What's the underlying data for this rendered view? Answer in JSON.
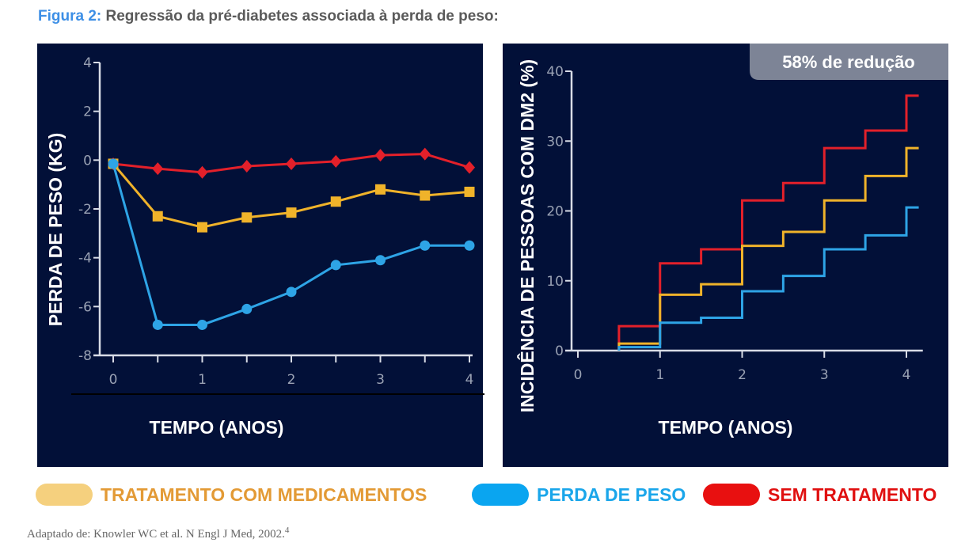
{
  "title": {
    "figure_label": "Figura 2:",
    "text": " Regressão da pré-diabetes associada à perda de peso:"
  },
  "colors": {
    "background": "#021038",
    "tratamento": "#f0b32a",
    "perda": "#2ea4e6",
    "sem": "#e3202a",
    "axis": "#d8dce6"
  },
  "legend": [
    {
      "label": "TRATAMENTO COM MEDICAMENTOS",
      "pill": "#f5d07e",
      "text": "#e39a35"
    },
    {
      "label": "PERDA DE PESO",
      "pill": "#0aa5f0",
      "text": "#1aa6ea"
    },
    {
      "label": "SEM TRATAMENTO",
      "pill": "#e81010",
      "text": "#e01010"
    }
  ],
  "footer": {
    "text": "Adaptado de: Knowler WC et al. N Engl J Med, 2002.",
    "ref": "4"
  },
  "chart_data": [
    {
      "type": "line",
      "xlabel": "TEMPO (ANOS)",
      "ylabel": "PERDA DE PESO (KG)",
      "xlim": [
        0,
        4
      ],
      "ylim": [
        -8,
        4
      ],
      "xticks": [
        "0",
        "1",
        "2",
        "3",
        "4"
      ],
      "yticks": [
        "4",
        "2",
        "0",
        "-2",
        "-4",
        "-6",
        "-8"
      ],
      "x": [
        0,
        0.5,
        1,
        1.5,
        2,
        2.5,
        3,
        3.5,
        4
      ],
      "series": [
        {
          "name": "SEM TRATAMENTO",
          "key": "sem",
          "marker": "diamond",
          "values": [
            -0.15,
            -0.35,
            -0.5,
            -0.25,
            -0.15,
            -0.05,
            0.2,
            0.25,
            -0.3
          ]
        },
        {
          "name": "TRATAMENTO COM MEDICAMENTOS",
          "key": "tratamento",
          "marker": "square",
          "values": [
            -0.15,
            -2.3,
            -2.75,
            -2.35,
            -2.15,
            -1.7,
            -1.2,
            -1.45,
            -1.3
          ]
        },
        {
          "name": "PERDA DE PESO",
          "key": "perda",
          "marker": "circle",
          "values": [
            -0.15,
            -6.75,
            -6.75,
            -6.1,
            -5.4,
            -4.3,
            -4.1,
            -3.5,
            -3.5
          ]
        }
      ]
    },
    {
      "type": "line",
      "step": true,
      "annotation": "58% de redução",
      "xlabel": "TEMPO (ANOS)",
      "ylabel": "INCIDÊNCIA DE PESSOAS COM DM2 (%)",
      "xlim": [
        0,
        4.2
      ],
      "ylim": [
        0,
        40
      ],
      "xticks": [
        "0",
        "1",
        "2",
        "3",
        "4"
      ],
      "yticks": [
        "40",
        "30",
        "20",
        "10",
        "0"
      ],
      "x": [
        0.5,
        1,
        1.5,
        2,
        2.5,
        3,
        3.5,
        4,
        4.15
      ],
      "series": [
        {
          "name": "SEM TRATAMENTO",
          "key": "sem",
          "values": [
            3.5,
            12.5,
            14.5,
            21.5,
            24,
            29,
            31.5,
            36.5,
            36.5
          ]
        },
        {
          "name": "TRATAMENTO COM MEDICAMENTOS",
          "key": "tratamento",
          "values": [
            1,
            8,
            9.5,
            15,
            17,
            21.5,
            25,
            29,
            29
          ]
        },
        {
          "name": "PERDA DE PESO",
          "key": "perda",
          "values": [
            0.5,
            4,
            4.7,
            8.5,
            10.7,
            14.5,
            16.5,
            20.5,
            20.5
          ]
        }
      ]
    }
  ]
}
